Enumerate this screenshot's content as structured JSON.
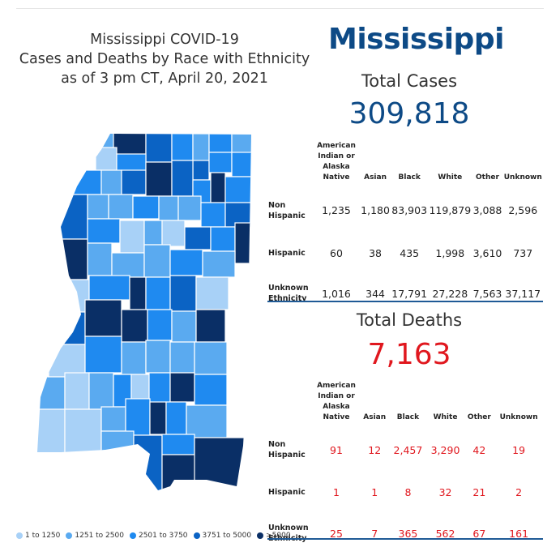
{
  "map_title": [
    "Mississippi COVID-19",
    "Cases and Deaths by Race with Ethnicity",
    "as of 3 pm CT, April 20, 2021"
  ],
  "state_name": "Mississippi",
  "cases": {
    "title": "Total Cases",
    "total": "309,818",
    "columns": [
      "American Indian or Alaska Native",
      "Asian",
      "Black",
      "White",
      "Other",
      "Unknown"
    ],
    "rows": [
      {
        "label": "Non Hispanic",
        "values": [
          "1,235",
          "1,180",
          "83,903",
          "119,879",
          "3,088",
          "2,596"
        ]
      },
      {
        "label": "Hispanic",
        "values": [
          "60",
          "38",
          "435",
          "1,998",
          "3,610",
          "737"
        ]
      },
      {
        "label": "Unknown Ethnicity",
        "values": [
          "1,016",
          "344",
          "17,791",
          "27,228",
          "7,563",
          "37,117"
        ]
      }
    ]
  },
  "deaths": {
    "title": "Total Deaths",
    "total": "7,163",
    "columns": [
      "American Indian or Alaska Native",
      "Asian",
      "Black",
      "White",
      "Other",
      "Unknown"
    ],
    "rows": [
      {
        "label": "Non Hispanic",
        "values": [
          "91",
          "12",
          "2,457",
          "3,290",
          "42",
          "19"
        ]
      },
      {
        "label": "Hispanic",
        "values": [
          "1",
          "1",
          "8",
          "32",
          "21",
          "2"
        ]
      },
      {
        "label": "Unknown Ethnicity",
        "values": [
          "25",
          "7",
          "365",
          "562",
          "67",
          "161"
        ]
      }
    ]
  },
  "colors": {
    "bin1": "#a8d1f7",
    "bin2": "#5aaaf0",
    "bin3": "#1f8af0",
    "bin4": "#0b63c4",
    "bin5": "#0a2f66",
    "accent": "#0d4a86",
    "deaths": "#e0171e"
  },
  "legend": [
    {
      "label": "1 to 1250",
      "color": "#a8d1f7"
    },
    {
      "label": "1251 to 2500",
      "color": "#5aaaf0"
    },
    {
      "label": "2501 to 3750",
      "color": "#1f8af0"
    },
    {
      "label": "3751 to 5000",
      "color": "#0b63c4"
    },
    {
      "label": ">5000",
      "color": "#0a2f66"
    }
  ]
}
